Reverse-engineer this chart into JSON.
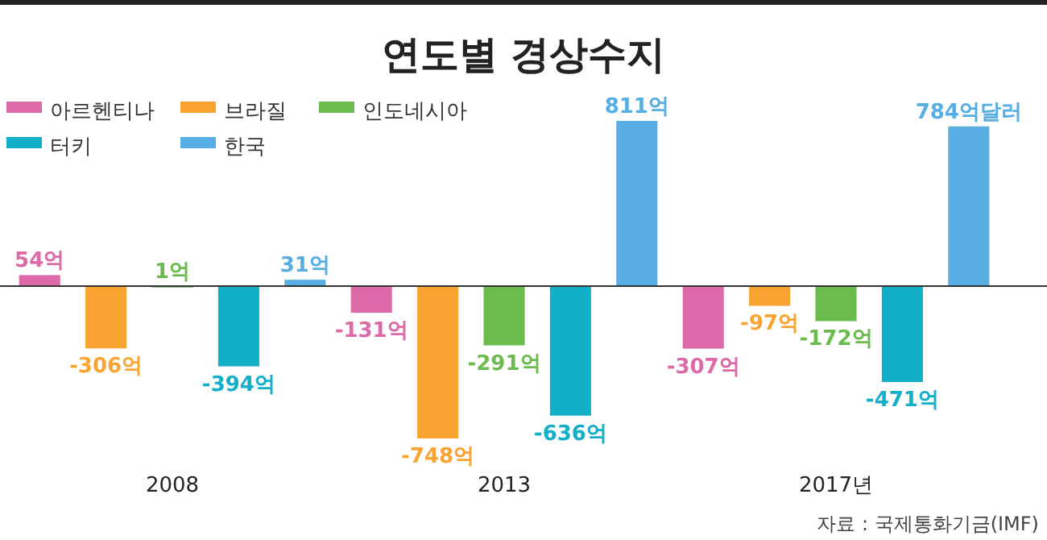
{
  "chart_data": {
    "type": "bar",
    "title": "연도별 경상수지",
    "categories": [
      "2008",
      "2013",
      "2017년"
    ],
    "series": [
      {
        "name": "아르헨티나",
        "color": "#dd6aa8",
        "values": [
          54,
          -131,
          -307
        ],
        "value_labels": [
          "54억",
          "-131억",
          "-307억"
        ]
      },
      {
        "name": "브라질",
        "color": "#f9a431",
        "values": [
          -306,
          -748,
          -97
        ],
        "value_labels": [
          "-306억",
          "-748억",
          "-97억"
        ]
      },
      {
        "name": "인도네시아",
        "color": "#6cbb4f",
        "values": [
          1,
          -291,
          -172
        ],
        "value_labels": [
          "1억",
          "-291억",
          "-172억"
        ]
      },
      {
        "name": "터키",
        "color": "#11b0c8",
        "values": [
          -394,
          -636,
          -471
        ],
        "value_labels": [
          "-394억",
          "-636억",
          "-471억"
        ]
      },
      {
        "name": "한국",
        "color": "#57aee2",
        "values": [
          31,
          811,
          784
        ],
        "value_labels": [
          "31억",
          "811억",
          "784억달러"
        ]
      }
    ],
    "legend": "top left",
    "annotations": [
      "자료 : 국제통화기금(IMF)"
    ]
  }
}
